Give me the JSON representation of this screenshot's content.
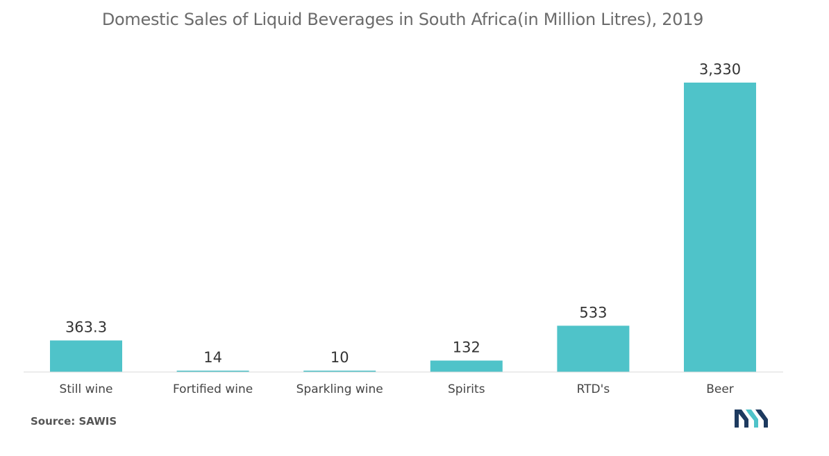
{
  "chart_data": {
    "type": "bar",
    "title": "Domestic Sales of Liquid Beverages in South Africa(in Million Litres), 2019",
    "categories": [
      "Still wine",
      "Fortified wine",
      "Sparkling wine",
      "Spirits",
      "RTD's",
      "Beer"
    ],
    "values": [
      363.3,
      14,
      10,
      132,
      533,
      3330
    ],
    "value_labels": [
      "363.3",
      "14",
      "10",
      "132",
      "533",
      "3,330"
    ],
    "xlabel": "",
    "ylabel": "",
    "ylim": [
      0,
      3330
    ],
    "grid": false,
    "bar_color": "#4fc3c9"
  },
  "source": "Source: SAWIS",
  "logo_icon": "mordor-intelligence-logo-icon"
}
